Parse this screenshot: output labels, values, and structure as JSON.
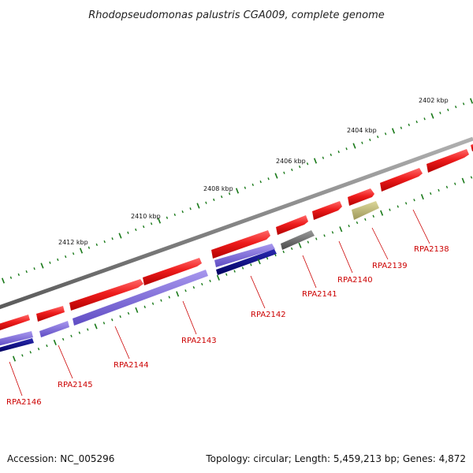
{
  "title": "Rhodopseudomonas palustris CGA009, complete genome",
  "footer": {
    "accession": "Accession: NC_005296",
    "summary": "Topology: circular; Length: 5,459,213 bp; Genes: 4,872"
  },
  "colors": {
    "backbone": "#808080",
    "forward_gene": "#e8161a",
    "reverse_gene_light": "#7b68d6",
    "reverse_gene_dark": "#0b0b8a",
    "gray_gene": "#6e6e6e",
    "khaki_gene": "#bdb76b",
    "tick_major": "#1a7a1a",
    "label": "#cc0000"
  },
  "scale": {
    "unit": "kbp",
    "labels": [
      {
        "kbp": 2402,
        "text": "2402 kbp"
      },
      {
        "kbp": 2404,
        "text": "2404 kbp"
      },
      {
        "kbp": 2406,
        "text": "2406 kbp"
      },
      {
        "kbp": 2408,
        "text": "2408 kbp"
      },
      {
        "kbp": 2410,
        "text": "2410 kbp"
      },
      {
        "kbp": 2412,
        "text": "2412 kbp"
      }
    ]
  },
  "genes": [
    {
      "id": "RPA2138",
      "label": "RPA2138"
    },
    {
      "id": "RPA2139",
      "label": "RPA2139"
    },
    {
      "id": "RPA2140",
      "label": "RPA2140"
    },
    {
      "id": "RPA2141",
      "label": "RPA2141"
    },
    {
      "id": "RPA2142",
      "label": "RPA2142"
    },
    {
      "id": "RPA2143",
      "label": "RPA2143"
    },
    {
      "id": "RPA2144",
      "label": "RPA2144"
    },
    {
      "id": "RPA2145",
      "label": "RPA2145"
    },
    {
      "id": "RPA2146",
      "label": "RPA2146"
    }
  ]
}
